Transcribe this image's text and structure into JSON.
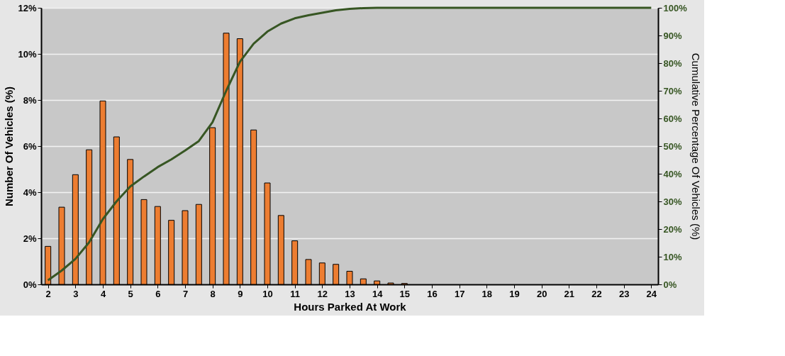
{
  "chart_data": {
    "type": "bar",
    "xlabel": "Hours Parked At Work",
    "ylabel": "Number Of Vehicles (%)",
    "y2label": "Cumulative Percentage Of Vehicles (%)",
    "x": [
      2,
      2.5,
      3,
      3.5,
      4,
      4.5,
      5,
      5.5,
      6,
      6.5,
      7,
      7.5,
      8,
      8.5,
      9,
      9.5,
      10,
      10.5,
      11,
      11.5,
      12,
      12.5,
      13,
      13.5,
      14,
      14.5,
      15,
      15.5,
      16,
      16.5,
      17,
      17.5,
      18,
      18.5,
      19,
      19.5,
      20,
      20.5,
      21,
      21.5,
      22,
      22.5,
      23,
      23.5,
      24
    ],
    "series": [
      {
        "color": "#ed7d31",
        "values": [
          1.65,
          3.35,
          4.76,
          5.84,
          7.96,
          6.4,
          5.42,
          3.68,
          3.38,
          2.78,
          3.2,
          3.47,
          6.8,
          10.9,
          10.66,
          6.7,
          4.4,
          2.99,
          1.89,
          1.08,
          0.93,
          0.87,
          0.57,
          0.24,
          0.15,
          0.06,
          0.04,
          0,
          0,
          0,
          0,
          0,
          0,
          0,
          0,
          0,
          0,
          0,
          0,
          0,
          0,
          0,
          0,
          0,
          0
        ]
      },
      {
        "type": "line",
        "axis": "y2",
        "color": "#375623",
        "values": [
          1.5,
          5,
          9.2,
          15.2,
          23.6,
          30,
          35.4,
          39,
          42.4,
          45.2,
          48.4,
          51.8,
          58.6,
          70,
          80.5,
          87,
          91.4,
          94.3,
          96.2,
          97.3,
          98.2,
          99.1,
          99.6,
          99.9,
          100,
          100,
          100,
          100,
          100,
          100,
          100,
          100,
          100,
          100,
          100,
          100,
          100,
          100,
          100,
          100,
          100,
          100,
          100,
          100,
          100
        ]
      }
    ],
    "xlim": [
      1.75,
      24.25
    ],
    "xticks": [
      2,
      3,
      4,
      5,
      6,
      7,
      8,
      9,
      10,
      11,
      12,
      13,
      14,
      15,
      16,
      17,
      18,
      19,
      20,
      21,
      22,
      23,
      24
    ],
    "ylim": [
      0,
      12
    ],
    "yticks": [
      {
        "value": 0,
        "label": "0%"
      },
      {
        "value": 2,
        "label": "2%"
      },
      {
        "value": 4,
        "label": "4%"
      },
      {
        "value": 6,
        "label": "6%"
      },
      {
        "value": 8,
        "label": "8%"
      },
      {
        "value": 10,
        "label": "10%"
      },
      {
        "value": 12,
        "label": "12%"
      }
    ],
    "y2lim": [
      0,
      100
    ],
    "y2ticks": [
      {
        "value": 0,
        "label": "0%"
      },
      {
        "value": 10,
        "label": "10%"
      },
      {
        "value": 20,
        "label": "20%"
      },
      {
        "value": 30,
        "label": "30%"
      },
      {
        "value": 40,
        "label": "40%"
      },
      {
        "value": 50,
        "label": "50%"
      },
      {
        "value": 60,
        "label": "60%"
      },
      {
        "value": 70,
        "label": "70%"
      },
      {
        "value": 80,
        "label": "80%"
      },
      {
        "value": 90,
        "label": "90%"
      },
      {
        "value": 100,
        "label": "100%"
      }
    ],
    "grid": "y"
  }
}
